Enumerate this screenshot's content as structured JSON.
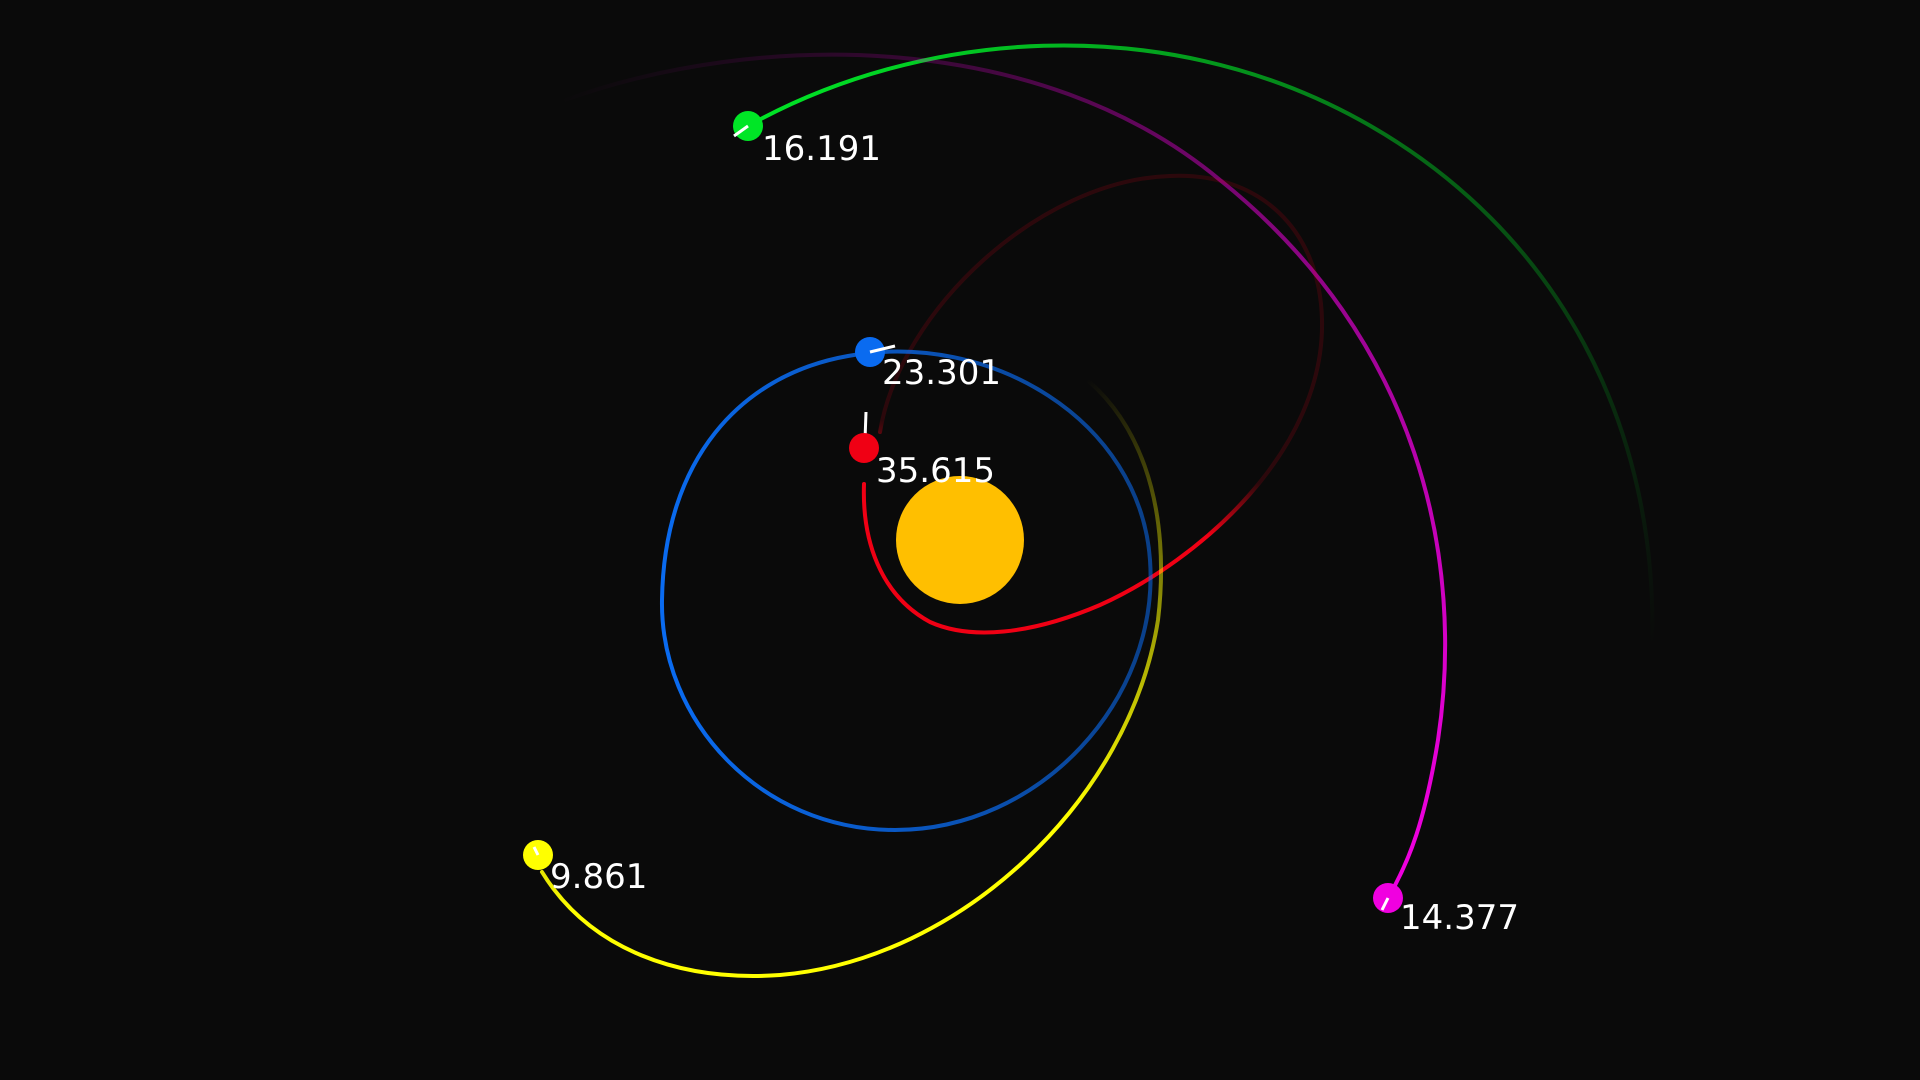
{
  "background_color": "#0a0a0a",
  "sun": {
    "color": "#ffbf00"
  },
  "planets": [
    {
      "id": "green",
      "color": "#00e626",
      "speed": "16.191"
    },
    {
      "id": "blue",
      "color": "#0a6bf0",
      "speed": "23.301"
    },
    {
      "id": "red",
      "color": "#f00014",
      "speed": "35.615"
    },
    {
      "id": "yellow",
      "color": "#ffff00",
      "speed": "9.861"
    },
    {
      "id": "magenta",
      "color": "#f000e0",
      "speed": "14.377"
    }
  ],
  "velocity_marker_color": "#ffffff"
}
